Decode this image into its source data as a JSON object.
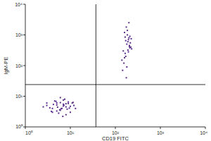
{
  "chart_data": {
    "type": "scatter",
    "xlabel": "CD19 FITC",
    "ylabel": "IgM-PE",
    "log": true,
    "color": "#5a2d8c",
    "xlim": [
      1,
      10000
    ],
    "ylim": [
      1,
      10000
    ],
    "xticks": [
      {
        "value": 1,
        "label": "10⁰"
      },
      {
        "value": 10,
        "label": "10¹"
      },
      {
        "value": 100,
        "label": "10²"
      },
      {
        "value": 1000,
        "label": "10³"
      },
      {
        "value": 10000,
        "label": "10⁴"
      }
    ],
    "yticks": [
      {
        "value": 1,
        "label": "10⁰"
      },
      {
        "value": 10,
        "label": "10¹"
      },
      {
        "value": 100,
        "label": "10²"
      },
      {
        "value": 1000,
        "label": "10³"
      },
      {
        "value": 10000,
        "label": "10⁴"
      }
    ],
    "quadrant_x": 37,
    "quadrant_y": 24,
    "x": [
      3,
      4,
      5,
      6,
      7,
      8,
      9,
      10,
      12,
      4.5,
      5.5,
      6.5,
      7.5,
      3.5,
      8.5,
      11,
      5,
      6,
      7,
      9,
      2.5,
      4,
      13,
      6,
      8,
      5,
      7,
      10,
      3,
      4.2,
      5.8,
      7.2,
      9.5,
      6.8,
      4.8,
      5.2,
      8,
      6.2,
      11.5,
      3.8,
      150,
      180,
      200,
      160,
      220,
      170,
      190,
      210,
      140,
      230,
      175,
      195,
      165,
      205,
      185,
      155,
      215,
      180,
      200,
      170,
      190,
      160,
      225,
      145,
      185,
      205,
      175,
      195,
      165,
      210
    ],
    "y": [
      5,
      4,
      6,
      3.5,
      5.5,
      4.5,
      6.5,
      3,
      5,
      7,
      2.8,
      4,
      8,
      4.2,
      3.8,
      6,
      5.2,
      6.2,
      4.8,
      5.8,
      4.5,
      3,
      4,
      9,
      2.5,
      3.3,
      7.5,
      4.7,
      6,
      5.4,
      3.6,
      5.1,
      4.1,
      2.2,
      6.8,
      4.4,
      5.7,
      3.9,
      6.3,
      3.2,
      300,
      500,
      800,
      1200,
      400,
      200,
      600,
      900,
      150,
      350,
      1800,
      700,
      250,
      450,
      1000,
      120,
      550,
      90,
      2500,
      650,
      320,
      180,
      750,
      70,
      1400,
      420,
      40,
      280,
      850,
      380
    ]
  }
}
